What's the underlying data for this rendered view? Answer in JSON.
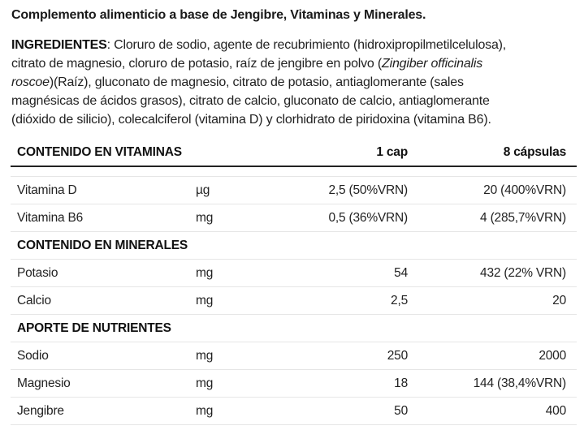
{
  "title": "Complemento alimenticio a base de Jengibre, Vitaminas y Minerales.",
  "ingredients": {
    "lines": [
      [
        {
          "t": "INGREDIENTES",
          "s": "b"
        },
        {
          "t": ": Cloruro de sodio, agente de recubrimiento (hidroxipropilmetilcelulosa),",
          "s": ""
        }
      ],
      [
        {
          "t": "citrato de magnesio, cloruro de potasio, raíz de jengibre en polvo (",
          "s": ""
        },
        {
          "t": "Zingiber officinalis",
          "s": "i"
        }
      ],
      [
        {
          "t": "roscoe",
          "s": "i"
        },
        {
          "t": ")(Raíz), gluconato de magnesio, citrato de potasio, antiaglomerante (sales",
          "s": ""
        }
      ],
      [
        {
          "t": "magnésicas de ácidos grasos), citrato de calcio, gluconato de calcio, antiaglomerante",
          "s": ""
        }
      ],
      [
        {
          "t": "(dióxido de silicio), colecalciferol (vitamina D) y clorhidrato de piridoxina (vitamina B6).",
          "s": ""
        }
      ]
    ]
  },
  "table": {
    "header": {
      "label": "CONTENIDO EN VITAMINAS",
      "col1": "1 cap",
      "col2": "8 cápsulas"
    },
    "rows": [
      {
        "type": "row",
        "name": "Vitamina D",
        "unit": "µg",
        "v1": "2,5 (50%VRN)",
        "v2": "20 (400%VRN)"
      },
      {
        "type": "row",
        "name": "Vitamina B6",
        "unit": "mg",
        "v1": "0,5 (36%VRN)",
        "v2": "4 (285,7%VRN)"
      },
      {
        "type": "section",
        "name": "CONTENIDO EN MINERALES"
      },
      {
        "type": "row",
        "name": "Potasio",
        "unit": "mg",
        "v1": "54",
        "v2": "432 (22% VRN)"
      },
      {
        "type": "row",
        "name": "Calcio",
        "unit": "mg",
        "v1": "2,5",
        "v2": "20"
      },
      {
        "type": "section",
        "name": "APORTE DE NUTRIENTES"
      },
      {
        "type": "row",
        "name": "Sodio",
        "unit": "mg",
        "v1": "250",
        "v2": "2000"
      },
      {
        "type": "row",
        "name": "Magnesio",
        "unit": "mg",
        "v1": "18",
        "v2": "144 (38,4%VRN)"
      },
      {
        "type": "row",
        "name": "Jengibre",
        "unit": "mg",
        "v1": "50",
        "v2": "400"
      }
    ]
  }
}
